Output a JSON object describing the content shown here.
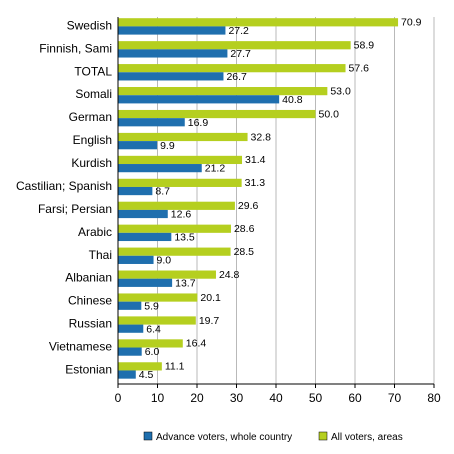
{
  "chart_data": {
    "type": "bar",
    "orientation": "horizontal",
    "categories": [
      "Swedish",
      "Finnish, Sami",
      "TOTAL",
      "Somali",
      "German",
      "English",
      "Kurdish",
      "Castilian; Spanish",
      "Farsi; Persian",
      "Arabic",
      "Thai",
      "Albanian",
      "Chinese",
      "Russian",
      "Vietnamese",
      "Estonian"
    ],
    "series": [
      {
        "name": "All voters, areas",
        "color": "#b5cf1f",
        "values": [
          70.9,
          58.9,
          57.6,
          53.0,
          50.0,
          32.8,
          31.4,
          31.3,
          29.6,
          28.6,
          28.5,
          24.8,
          20.1,
          19.7,
          16.4,
          11.1
        ]
      },
      {
        "name": "Advance voters, whole country",
        "color": "#1f6fae",
        "values": [
          27.2,
          27.7,
          26.7,
          40.8,
          16.9,
          9.9,
          21.2,
          8.7,
          12.6,
          13.5,
          9.0,
          13.7,
          5.9,
          6.4,
          6.0,
          4.5
        ]
      }
    ],
    "value_labels": {
      "all": [
        "70.9",
        "58.9",
        "57.6",
        "53.0",
        "50.0",
        "32.8",
        "31.4",
        "31.3",
        "29.6",
        "28.6",
        "28.5",
        "24.8",
        "20.1",
        "19.7",
        "16.4",
        "11.1"
      ],
      "advance": [
        "27.2",
        "27.7",
        "26.7",
        "40.8",
        "16.9",
        "9.9",
        "21.2",
        "8.7",
        "12.6",
        "13.5",
        "9.0",
        "13.7",
        "5.9",
        "6.4",
        "6.0",
        "4.5"
      ]
    },
    "xlim": [
      0,
      80
    ],
    "xticks": [
      "0",
      "10",
      "20",
      "30",
      "40",
      "50",
      "60",
      "70",
      "80"
    ],
    "grid": "vertical",
    "legend": {
      "position": "bottom",
      "items": [
        "Advance voters, whole country",
        "All voters, areas"
      ]
    }
  }
}
